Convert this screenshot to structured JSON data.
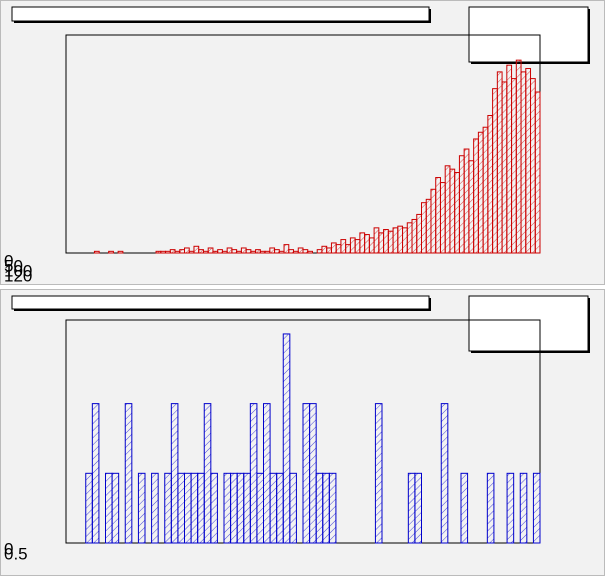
{
  "chart_data": [
    {
      "type": "histogram",
      "color": "#cc0000",
      "bins": [
        0,
        1,
        2,
        3,
        4,
        5,
        6,
        7,
        8,
        9,
        10,
        11,
        12,
        13,
        14,
        15,
        16,
        17,
        18,
        19,
        20,
        21,
        22,
        23,
        24,
        25,
        26,
        27,
        28,
        29,
        30,
        31,
        32,
        33,
        34,
        35,
        36,
        37,
        38,
        39,
        40,
        41,
        42,
        43,
        44,
        45,
        46,
        47,
        48,
        49,
        50,
        51,
        52,
        53,
        54,
        55,
        56,
        57,
        58,
        59,
        60,
        61,
        62,
        63,
        64,
        65,
        66,
        67,
        68,
        69,
        70,
        71,
        72,
        73,
        74,
        75,
        76,
        77,
        78,
        79,
        80,
        81,
        82,
        83,
        84,
        85,
        86,
        87,
        88,
        89,
        90,
        91,
        92,
        93,
        94,
        95,
        96,
        97,
        98,
        99,
        100
      ],
      "values": [
        0,
        0,
        0,
        0,
        0,
        0,
        1,
        0,
        0,
        1,
        0,
        1,
        0,
        0,
        0,
        0,
        0,
        0,
        0,
        1,
        1,
        1,
        2,
        1,
        2,
        3,
        1,
        4,
        2,
        1,
        3,
        1,
        2,
        1,
        3,
        2,
        1,
        3,
        2,
        1,
        2,
        1,
        1,
        3,
        2,
        1,
        5,
        2,
        1,
        3,
        2,
        1,
        0,
        2,
        4,
        3,
        6,
        5,
        8,
        5,
        9,
        8,
        12,
        11,
        9,
        15,
        12,
        14,
        13,
        15,
        16,
        15,
        18,
        20,
        23,
        30,
        32,
        38,
        45,
        42,
        52,
        50,
        48,
        58,
        62,
        55,
        68,
        72,
        75,
        82,
        98,
        108,
        102,
        112,
        104,
        115,
        108,
        110,
        104,
        96
      ],
      "xlim": [
        0,
        100
      ],
      "ylim": [
        0,
        130
      ],
      "tick_labels": [
        "0",
        "50",
        "100",
        "120"
      ]
    },
    {
      "type": "histogram",
      "color": "#0000cc",
      "bins": [
        0,
        1,
        2,
        3,
        4,
        5,
        6,
        7,
        8,
        9,
        10,
        11,
        12,
        13,
        14,
        15,
        16,
        17,
        18,
        19,
        20,
        21,
        22,
        23,
        24,
        25,
        26,
        27,
        28,
        29,
        30,
        31,
        32,
        33,
        34,
        35,
        36,
        37,
        38,
        39,
        40,
        41,
        42,
        43,
        44,
        45,
        46,
        47,
        48,
        49,
        50,
        51,
        52,
        53,
        54,
        55,
        56,
        57,
        58,
        59,
        60,
        61,
        62,
        63,
        64,
        65,
        66,
        67,
        68,
        69,
        70,
        71,
        72
      ],
      "values": [
        0,
        0,
        0,
        1,
        2,
        0,
        1,
        1,
        0,
        2,
        0,
        1,
        0,
        1,
        0,
        1,
        2,
        1,
        1,
        1,
        1,
        2,
        1,
        0,
        1,
        1,
        1,
        1,
        2,
        1,
        2,
        1,
        1,
        3,
        1,
        0,
        2,
        2,
        1,
        1,
        1,
        0,
        0,
        0,
        0,
        0,
        0,
        2,
        0,
        0,
        0,
        0,
        1,
        1,
        0,
        0,
        0,
        2,
        0,
        0,
        1,
        0,
        0,
        0,
        1,
        0,
        0,
        1,
        0,
        1,
        0,
        1
      ],
      "xlim": [
        0,
        72
      ],
      "ylim": [
        0,
        3.2
      ],
      "tick_labels": [
        "0",
        "0.5"
      ]
    }
  ]
}
